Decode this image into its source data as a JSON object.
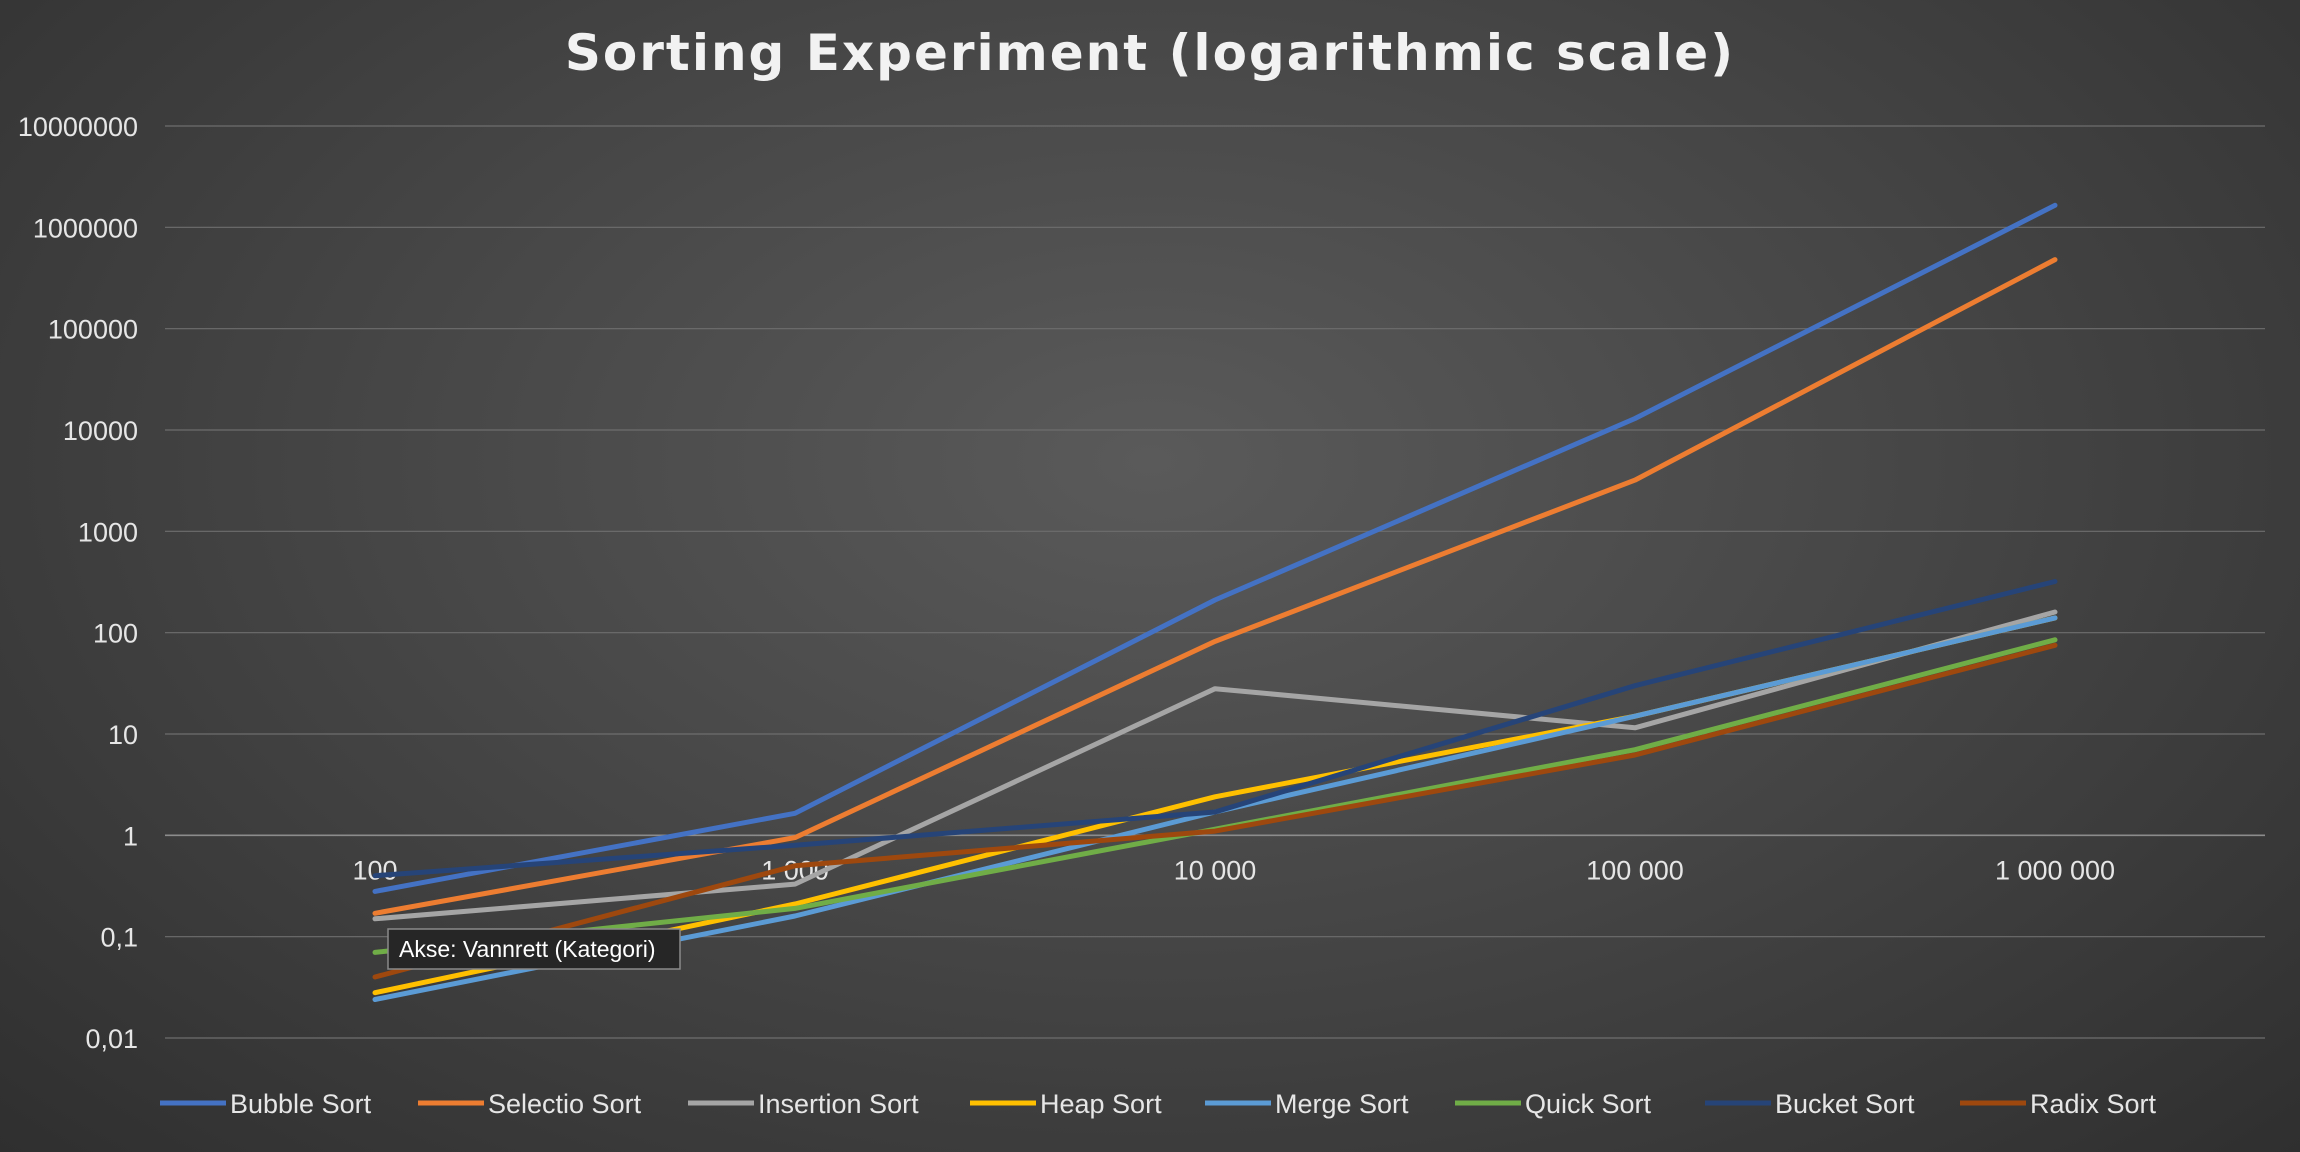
{
  "chart_data": {
    "type": "line",
    "title": "Sorting Experiment (logarithmic scale)",
    "y_scale": "log",
    "ylim": [
      0.01,
      10000000
    ],
    "y_tick_labels": [
      "10000000",
      "1000000",
      "100000",
      "10000",
      "1000",
      "100",
      "10",
      "1",
      "0,1",
      "0,01"
    ],
    "categories": [
      "100",
      "1 000",
      "10 000",
      "100 000",
      "1 000 000"
    ],
    "grid": true,
    "legend_position": "bottom",
    "series": [
      {
        "name": "Bubble Sort",
        "color": "#4472C4",
        "values": [
          0.28,
          1.65,
          210,
          13000,
          1650000
        ]
      },
      {
        "name": "Selectio Sort",
        "color": "#ED7D31",
        "values": [
          0.17,
          0.95,
          82,
          3200,
          480000
        ]
      },
      {
        "name": "Insertion Sort",
        "color": "#A5A5A5",
        "values": [
          0.15,
          0.33,
          28,
          11.5,
          160
        ]
      },
      {
        "name": "Heap Sort",
        "color": "#FFC000",
        "values": [
          0.028,
          0.21,
          2.4,
          15,
          140
        ]
      },
      {
        "name": "Merge Sort",
        "color": "#5B9BD5",
        "values": [
          0.024,
          0.16,
          1.7,
          15,
          140
        ]
      },
      {
        "name": "Quick Sort",
        "color": "#70AD47",
        "values": [
          0.07,
          0.19,
          1.15,
          7,
          85
        ]
      },
      {
        "name": "Bucket Sort",
        "color": "#264478",
        "values": [
          0.4,
          0.8,
          1.7,
          30,
          320
        ]
      },
      {
        "name": "Radix Sort",
        "color": "#9E480E",
        "values": [
          0.04,
          0.5,
          1.1,
          6.2,
          75
        ]
      }
    ],
    "tooltip": "Akse: Vannrett (Kategori)"
  }
}
